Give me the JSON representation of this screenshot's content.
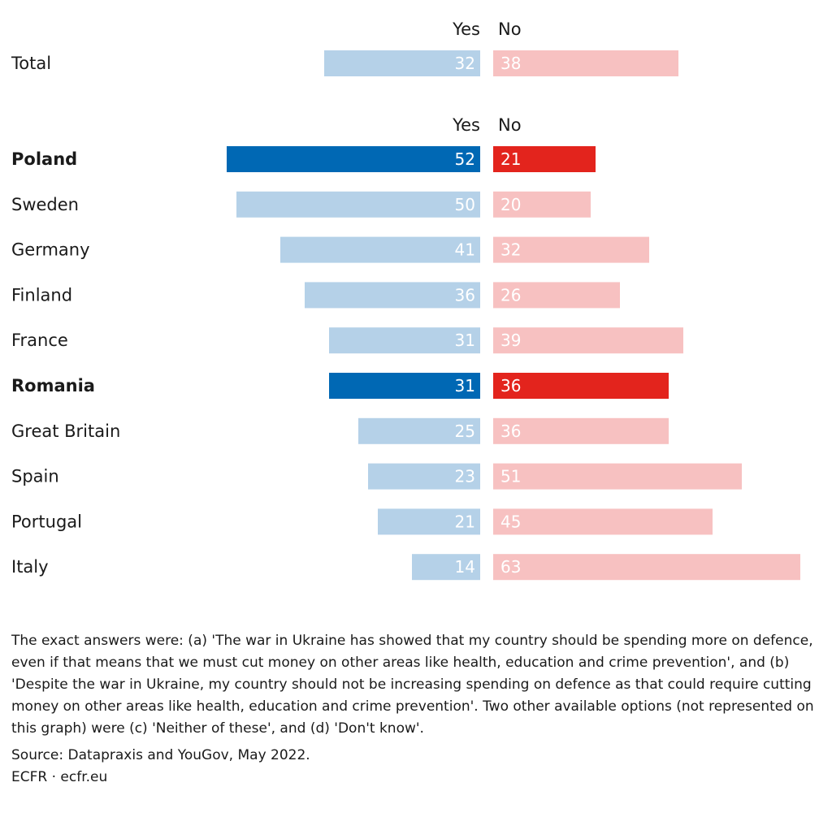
{
  "chart_data": {
    "type": "bar",
    "orientation": "horizontal-diverging",
    "series_headers": {
      "yes": "Yes",
      "no": "No"
    },
    "colors": {
      "yes": "#b5d1e8",
      "no": "#f7c1c1",
      "yes_highlight": "#0068b4",
      "no_highlight": "#e3241d"
    },
    "total": {
      "label": "Total",
      "yes": 32,
      "no": 38
    },
    "categories": [
      "Poland",
      "Sweden",
      "Germany",
      "Finland",
      "France",
      "Romania",
      "Great Britain",
      "Spain",
      "Portugal",
      "Italy"
    ],
    "highlight": [
      "Poland",
      "Romania"
    ],
    "series": [
      {
        "name": "Yes",
        "values": [
          52,
          50,
          41,
          36,
          31,
          31,
          25,
          23,
          21,
          14
        ]
      },
      {
        "name": "No",
        "values": [
          21,
          20,
          32,
          26,
          39,
          36,
          36,
          51,
          45,
          63
        ]
      }
    ]
  },
  "notes": {
    "text": "The exact answers were: (a) 'The war in Ukraine has showed that my country should be spending more on defence, even if that means that we must cut money on other areas like health, education and crime prevention', and (b) 'Despite the war in Ukraine, my country should not be increasing spending on defence as that could require cutting money on other areas like health, education and crime prevention'. Two other available options (not represented on this graph) were (c) 'Neither of these', and (d) 'Don't know'.",
    "source": "Source: Datapraxis and YouGov, May 2022.",
    "credit": "ECFR · ecfr.eu"
  }
}
